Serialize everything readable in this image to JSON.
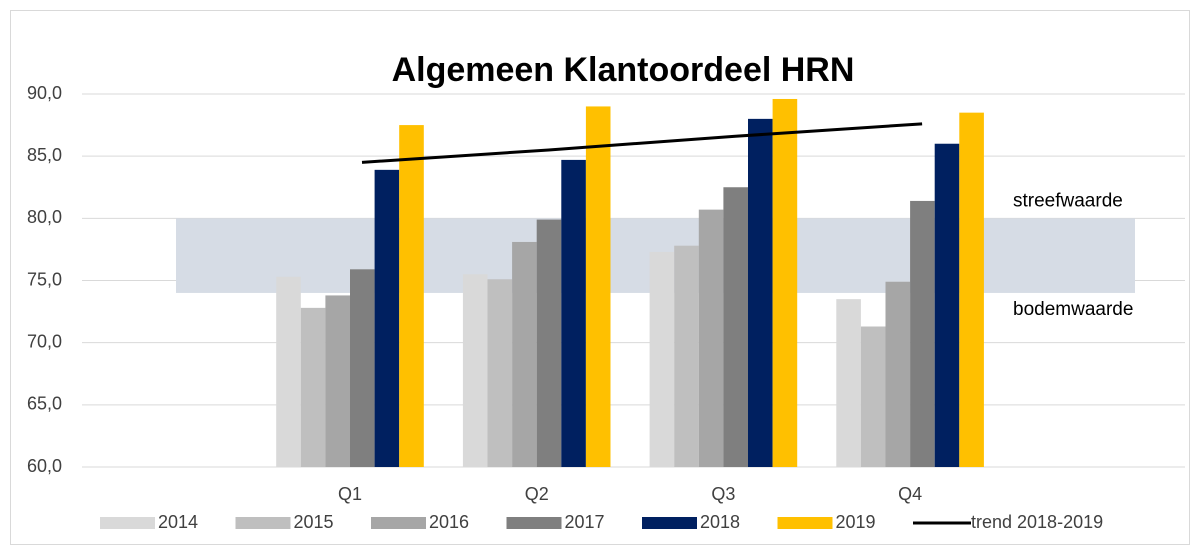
{
  "chart_data": {
    "type": "bar",
    "title": "Algemeen Klantoordeel HRN",
    "categories": [
      null,
      "Q1",
      "Q2",
      "Q3",
      "Q4",
      null
    ],
    "series": [
      {
        "name": "2014",
        "color": "#d9d9d9",
        "values": [
          null,
          75.3,
          75.5,
          77.3,
          73.5,
          null
        ]
      },
      {
        "name": "2015",
        "color": "#bfbfbf",
        "values": [
          null,
          72.8,
          75.1,
          77.8,
          71.3,
          null
        ]
      },
      {
        "name": "2016",
        "color": "#a6a6a6",
        "values": [
          null,
          73.8,
          78.1,
          80.7,
          74.9,
          null
        ]
      },
      {
        "name": "2017",
        "color": "#7f7f7f",
        "values": [
          null,
          75.9,
          79.9,
          82.5,
          81.4,
          null
        ]
      },
      {
        "name": "2018",
        "color": "#002060",
        "values": [
          null,
          83.9,
          84.7,
          88.0,
          86.0,
          null
        ]
      },
      {
        "name": "2019",
        "color": "#ffc000",
        "values": [
          null,
          87.5,
          89.0,
          89.6,
          88.5,
          null
        ]
      },
      {
        "name": "trend 2018-2019",
        "color": "#000000",
        "type": "line",
        "values": [
          null,
          84.5,
          85.5,
          86.6,
          87.6,
          null
        ]
      }
    ],
    "band": {
      "color": "#d6dce5",
      "lower": 74,
      "upper": 80,
      "upper_label": "streefwaarde",
      "lower_label": "bodemwaarde"
    },
    "ylim": [
      60,
      90
    ],
    "yticks": [
      {
        "value": 60,
        "label": "60,0"
      },
      {
        "value": 65,
        "label": "65,0"
      },
      {
        "value": 70,
        "label": "70,0"
      },
      {
        "value": 75,
        "label": "75,0"
      },
      {
        "value": 80,
        "label": "80,0"
      },
      {
        "value": 85,
        "label": "85,0"
      },
      {
        "value": 90,
        "label": "90,0"
      }
    ],
    "grid": true,
    "legend": "bottom"
  }
}
